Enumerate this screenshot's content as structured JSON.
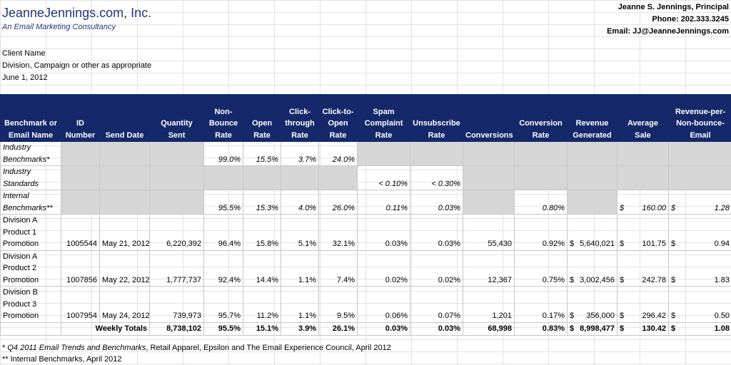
{
  "header": {
    "company": "JeanneJennings.com, Inc.",
    "tagline": "An Email Marketing Consultancy",
    "principal": "Jeanne S. Jennings, Principal",
    "phone": "Phone: 202.333.3245",
    "email": "Email: JJ@JeanneJennings.com"
  },
  "client": {
    "name": "Client Name",
    "division": "Division, Campaign or other as appropriate",
    "date": "June 1, 2012"
  },
  "columns": [
    "Benchmark or Email Name",
    "ID Number",
    "Send Date",
    "Quantity Sent",
    "Non-Bounce Rate",
    "Open Rate",
    "Click-through Rate",
    "Click-to-Open Rate",
    "Spam Complaint Rate",
    "Unsubscribe Rate",
    "Conversions",
    "Conversion Rate",
    "Revenue Generated",
    "Average Sale",
    "Revenue-per-Non-bounce-Email"
  ],
  "benchmarks": [
    {
      "name": "Industry Benchmarks*",
      "nonbounce": "99.0%",
      "open": "15.5%",
      "ctr": "3.7%",
      "cto": "24.0%"
    },
    {
      "name": "Industry Standards",
      "spam": "< 0.10%",
      "unsub": "< 0.30%"
    },
    {
      "name": "Internal Benchmarks**",
      "nonbounce": "95.5%",
      "open": "15.3%",
      "ctr": "4.0%",
      "cto": "26.0%",
      "spam": "0.11%",
      "unsub": "0.03%",
      "convrate": "0.80%",
      "avgsale": "160.00",
      "rpe": "1.28"
    }
  ],
  "rows": [
    {
      "name": "Division A Product 1 Promotion",
      "id": "1005544",
      "date": "May 21, 2012",
      "qty": "6,220,392",
      "nonbounce": "96.4%",
      "open": "15.8%",
      "ctr": "5.1%",
      "cto": "32.1%",
      "spam": "0.03%",
      "unsub": "0.03%",
      "conv": "55,430",
      "convrate": "0.92%",
      "revenue": "5,640,021",
      "avgsale": "101.75",
      "rpe": "0.94"
    },
    {
      "name": "Division A Product 2 Promotion",
      "id": "1007856",
      "date": "May 22, 2012",
      "qty": "1,777,737",
      "nonbounce": "92.4%",
      "open": "14.4%",
      "ctr": "1.1%",
      "cto": "7.4%",
      "spam": "0.02%",
      "unsub": "0.02%",
      "conv": "12,367",
      "convrate": "0.75%",
      "revenue": "3,002,456",
      "avgsale": "242.78",
      "rpe": "1.83"
    },
    {
      "name": "Division B Product 3 Promotion",
      "id": "1007954",
      "date": "May 24, 2012",
      "qty": "739,973",
      "nonbounce": "95.7%",
      "open": "11.2%",
      "ctr": "1.1%",
      "cto": "9.5%",
      "spam": "0.06%",
      "unsub": "0.07%",
      "conv": "1,201",
      "convrate": "0.17%",
      "revenue": "356,000",
      "avgsale": "296.42",
      "rpe": "0.50"
    }
  ],
  "totals": {
    "label": "Weekly Totals",
    "qty": "8,738,102",
    "nonbounce": "95.5%",
    "open": "15.1%",
    "ctr": "3.9%",
    "cto": "26.1%",
    "spam": "0.03%",
    "unsub": "0.03%",
    "conv": "68,998",
    "convrate": "0.83%",
    "revenue": "8,998,477",
    "avgsale": "130.42",
    "rpe": "1.08"
  },
  "currency": "$",
  "notes": {
    "note1_prefix": "* ",
    "note1_italic": "Q4 2011 Email Trends and Benchmarks",
    "note1_rest": ", Retail Apparel, Epsilon and The Email Experience Council, April 2012",
    "note2": "** Internal Benchmarks, April 2012"
  }
}
